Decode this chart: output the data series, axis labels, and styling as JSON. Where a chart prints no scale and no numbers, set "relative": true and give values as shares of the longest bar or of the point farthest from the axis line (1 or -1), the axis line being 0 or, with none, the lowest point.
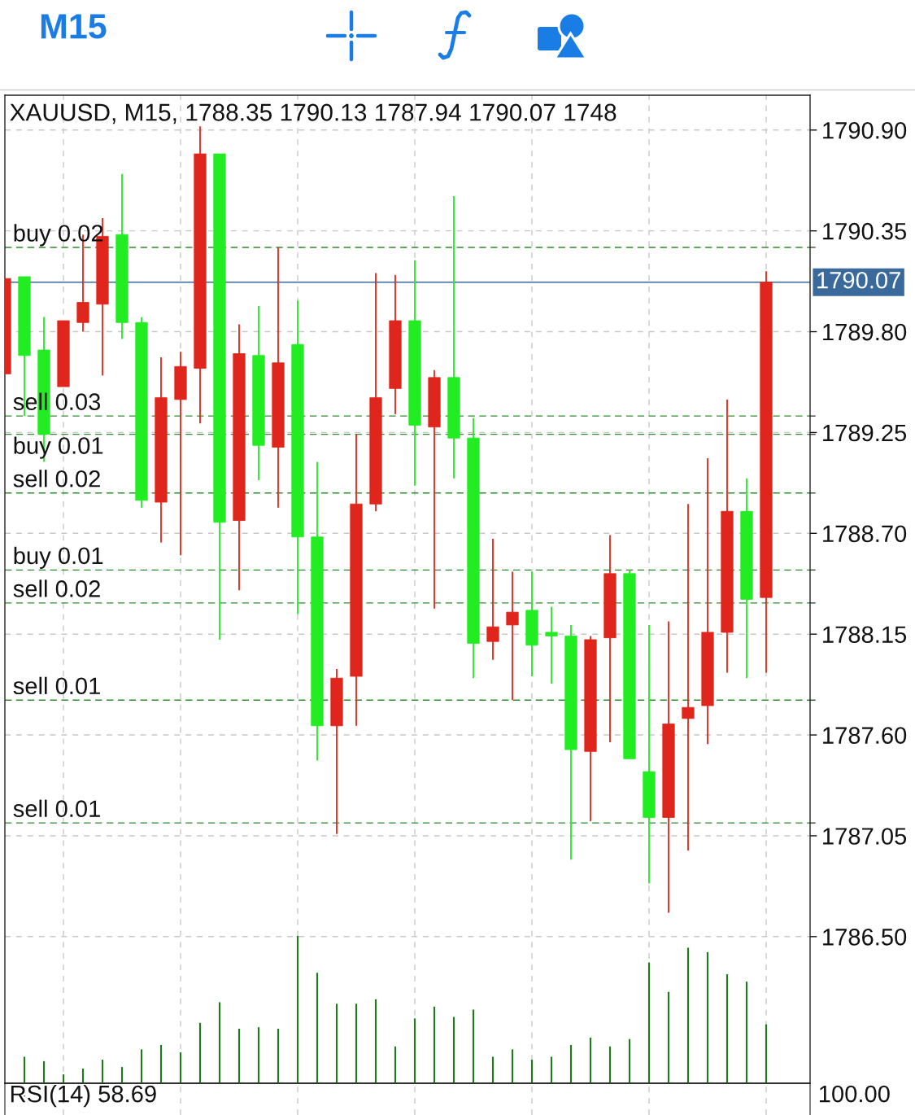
{
  "chart_data": [
    {
      "type": "other",
      "title": "M15"
    },
    {
      "type": "candlestick",
      "title": "XAUUSD, M15, 1788.35 1790.13 1787.94 1790.07 1748",
      "categories": [
        null,
        null,
        null,
        null,
        null,
        null,
        null,
        null,
        null,
        null,
        null,
        null,
        null,
        null,
        null,
        null,
        null,
        null,
        null,
        null,
        null,
        null,
        null,
        null,
        null,
        null,
        null,
        null,
        null,
        null,
        null,
        null,
        null,
        null,
        null,
        null,
        null,
        null,
        null,
        null
      ],
      "ohlc": [
        [
          1789.57,
          1790.09,
          1789.57,
          1790.09
        ],
        [
          1790.1,
          1790.1,
          1789.34,
          1789.67
        ],
        [
          1789.7,
          1789.88,
          1789.09,
          1789.24
        ],
        [
          1789.5,
          1789.86,
          1789.5,
          1789.86
        ],
        [
          1789.85,
          1790.33,
          1789.8,
          1789.96
        ],
        [
          1789.95,
          1790.42,
          1789.56,
          1790.32
        ],
        [
          1790.33,
          1790.66,
          1789.76,
          1789.85
        ],
        [
          1789.85,
          1789.88,
          1788.84,
          1788.88
        ],
        [
          1788.87,
          1789.66,
          1788.65,
          1789.44
        ],
        [
          1789.43,
          1789.69,
          1788.58,
          1789.61
        ],
        [
          1789.6,
          1790.92,
          1789.3,
          1790.77
        ],
        [
          1790.77,
          1790.77,
          1788.12,
          1788.76
        ],
        [
          1788.77,
          1789.84,
          1788.39,
          1789.68
        ],
        [
          1789.67,
          1789.94,
          1788.99,
          1789.18
        ],
        [
          1789.17,
          1790.26,
          1788.84,
          1789.63
        ],
        [
          1789.73,
          1789.97,
          1788.26,
          1788.68
        ],
        [
          1788.68,
          1789.09,
          1787.46,
          1787.65
        ],
        [
          1787.65,
          1787.96,
          1787.06,
          1787.91
        ],
        [
          1787.92,
          1789.24,
          1787.65,
          1788.86
        ],
        [
          1788.86,
          1790.12,
          1788.82,
          1789.44
        ],
        [
          1789.49,
          1790.11,
          1789.35,
          1789.86
        ],
        [
          1789.86,
          1790.19,
          1788.96,
          1789.29
        ],
        [
          1789.28,
          1789.59,
          1788.29,
          1789.55
        ],
        [
          1789.55,
          1790.54,
          1789.0,
          1789.22
        ],
        [
          1789.22,
          1789.33,
          1787.91,
          1788.1
        ],
        [
          1788.11,
          1788.67,
          1788.01,
          1788.19
        ],
        [
          1788.2,
          1788.49,
          1787.79,
          1788.27
        ],
        [
          1788.28,
          1788.49,
          1787.92,
          1788.09
        ],
        [
          1788.16,
          1788.3,
          1787.88,
          1788.14
        ],
        [
          1788.14,
          1788.2,
          1786.92,
          1787.52
        ],
        [
          1787.51,
          1788.14,
          1787.13,
          1788.12
        ],
        [
          1788.13,
          1788.69,
          1787.56,
          1788.48
        ],
        [
          1788.48,
          1788.5,
          1787.47,
          1787.47
        ],
        [
          1787.4,
          1788.2,
          1786.79,
          1787.15
        ],
        [
          1787.15,
          1788.22,
          1786.63,
          1787.66
        ],
        [
          1787.69,
          1788.86,
          1786.97,
          1787.75
        ],
        [
          1787.76,
          1789.11,
          1787.55,
          1788.16
        ],
        [
          1788.16,
          1789.43,
          1787.94,
          1788.82
        ],
        [
          1788.82,
          1789.0,
          1787.91,
          1788.34
        ],
        [
          1788.35,
          1790.13,
          1787.94,
          1790.07
        ]
      ],
      "colors": [
        "#e0261c",
        "#22ec22",
        "#22ec22",
        "#e0261c",
        "#e0261c",
        "#e0261c",
        "#22ec22",
        "#22ec22",
        "#e0261c",
        "#e0261c",
        "#e0261c",
        "#22ec22",
        "#e0261c",
        "#22ec22",
        "#e0261c",
        "#22ec22",
        "#22ec22",
        "#e0261c",
        "#e0261c",
        "#e0261c",
        "#e0261c",
        "#22ec22",
        "#e0261c",
        "#22ec22",
        "#22ec22",
        "#e0261c",
        "#e0261c",
        "#22ec22",
        "#22ec22",
        "#22ec22",
        "#e0261c",
        "#e0261c",
        "#22ec22",
        "#22ec22",
        "#e0261c",
        "#e0261c",
        "#e0261c",
        "#e0261c",
        "#22ec22",
        "#e0261c"
      ],
      "ylim": [
        1785.7,
        1791.09
      ],
      "yticks": [
        {
          "value": 1786.5,
          "label": "1786.50"
        },
        1787.05,
        {
          "value": 1787.6,
          "label": "1787.60"
        },
        1788.15,
        {
          "value": 1788.7,
          "label": "1788.70"
        },
        1789.25,
        {
          "value": 1789.8,
          "label": "1789.80"
        },
        1790.35,
        {
          "value": 1790.9,
          "label": "1790.90"
        }
      ],
      "grid": true,
      "tick_labels": "y",
      "ref_lines": [
        {
          "axis": "y",
          "value": 1790.26,
          "label": "buy 0.02",
          "color": "#2e8b2e",
          "line_style": "dashed"
        },
        {
          "axis": "y",
          "value": 1789.34,
          "label": "sell 0.03",
          "color": "#2e8b2e",
          "line_style": "dashed"
        },
        {
          "axis": "y",
          "value": 1789.24,
          "label": "buy 0.01",
          "color": "#2e8b2e",
          "line_style": "dashed"
        },
        {
          "axis": "y",
          "value": 1788.92,
          "label": "sell 0.02",
          "color": "#2e8b2e",
          "line_style": "dashed"
        },
        {
          "axis": "y",
          "value": 1788.5,
          "label": "buy 0.01",
          "color": "#2e8b2e",
          "line_style": "dashed"
        },
        {
          "axis": "y",
          "value": 1788.32,
          "label": "sell 0.02",
          "color": "#2e8b2e",
          "line_style": "dashed"
        },
        {
          "axis": "y",
          "value": 1787.79,
          "label": "sell 0.01",
          "color": "#2e8b2e",
          "line_style": "dashed"
        },
        {
          "axis": "y",
          "value": 1787.12,
          "label": "sell 0.01",
          "color": "#2e8b2e",
          "line_style": "dashed"
        },
        {
          "axis": "y",
          "value": 1790.07,
          "label": "1790.07",
          "color": "#3a6a9c",
          "line_style": "solid"
        }
      ]
    },
    {
      "type": "bar",
      "relative": true,
      "color": "#1e7b1e",
      "categories": [
        null,
        null,
        null,
        null,
        null,
        null,
        null,
        null,
        null,
        null,
        null,
        null,
        null,
        null,
        null,
        null,
        null,
        null,
        null,
        null,
        null,
        null,
        null,
        null,
        null,
        null,
        null,
        null,
        null,
        null,
        null,
        null,
        null,
        null,
        null,
        null,
        null,
        null,
        null,
        null
      ],
      "values": [
        null,
        0.18,
        0.15,
        0.06,
        0.1,
        0.16,
        0.11,
        0.23,
        0.26,
        0.21,
        0.41,
        0.55,
        0.37,
        0.38,
        0.37,
        1.0,
        0.75,
        0.54,
        0.54,
        0.57,
        0.25,
        0.44,
        0.52,
        0.45,
        0.5,
        0.18,
        0.23,
        0.16,
        0.18,
        0.26,
        0.31,
        0.25,
        0.3,
        0.82,
        0.62,
        0.92,
        0.89,
        0.74,
        0.69,
        0.4
      ]
    },
    {
      "type": "other",
      "title": "RSI(14) 58.69",
      "annotations": [
        "100.00"
      ]
    }
  ]
}
